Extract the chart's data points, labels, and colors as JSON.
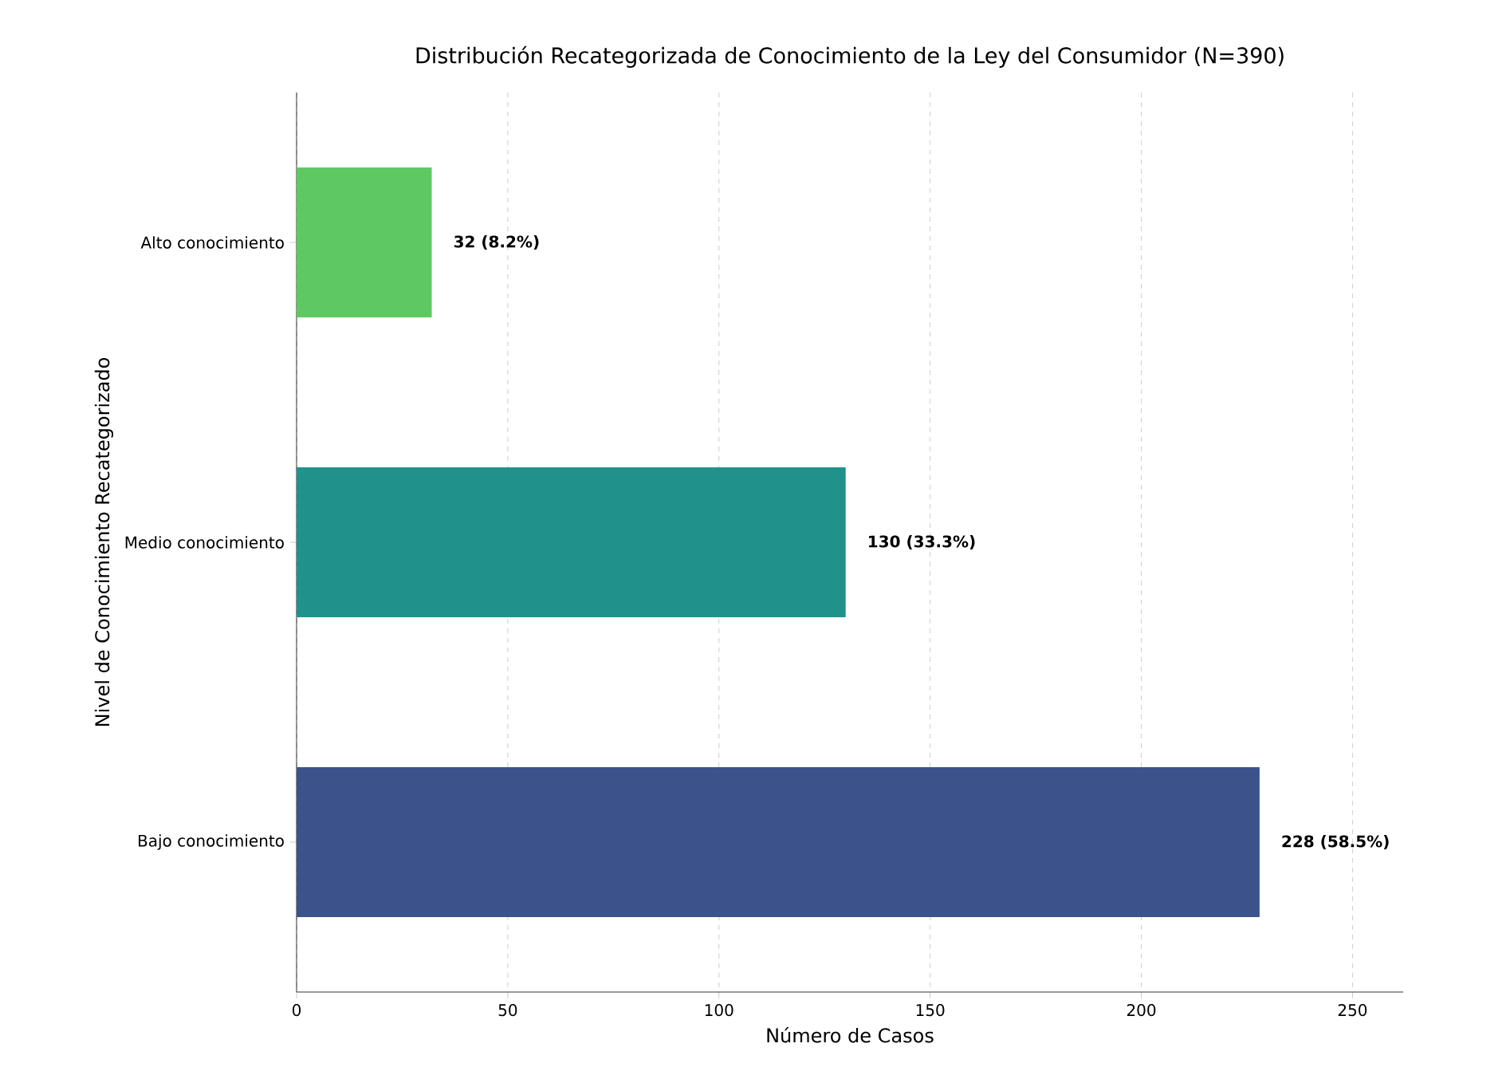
{
  "chart_data": {
    "type": "bar",
    "orientation": "horizontal",
    "title": "Distribución Recategorizada de Conocimiento de la Ley del Consumidor (N=390)",
    "xlabel": "Número de Casos",
    "ylabel": "Nivel de Conocimiento Recategorizado",
    "categories": [
      "Alto conocimiento",
      "Medio conocimiento",
      "Bajo conocimiento"
    ],
    "values": [
      32,
      130,
      228
    ],
    "colors": [
      "#5ec962",
      "#21918c",
      "#3b528b"
    ],
    "value_labels": [
      "32 (8.2%)",
      "130 (33.3%)",
      "228 (58.5%)"
    ],
    "xlim": [
      0,
      262
    ],
    "xticks": [
      0,
      50,
      100,
      150,
      200,
      250
    ],
    "grid": "x"
  }
}
